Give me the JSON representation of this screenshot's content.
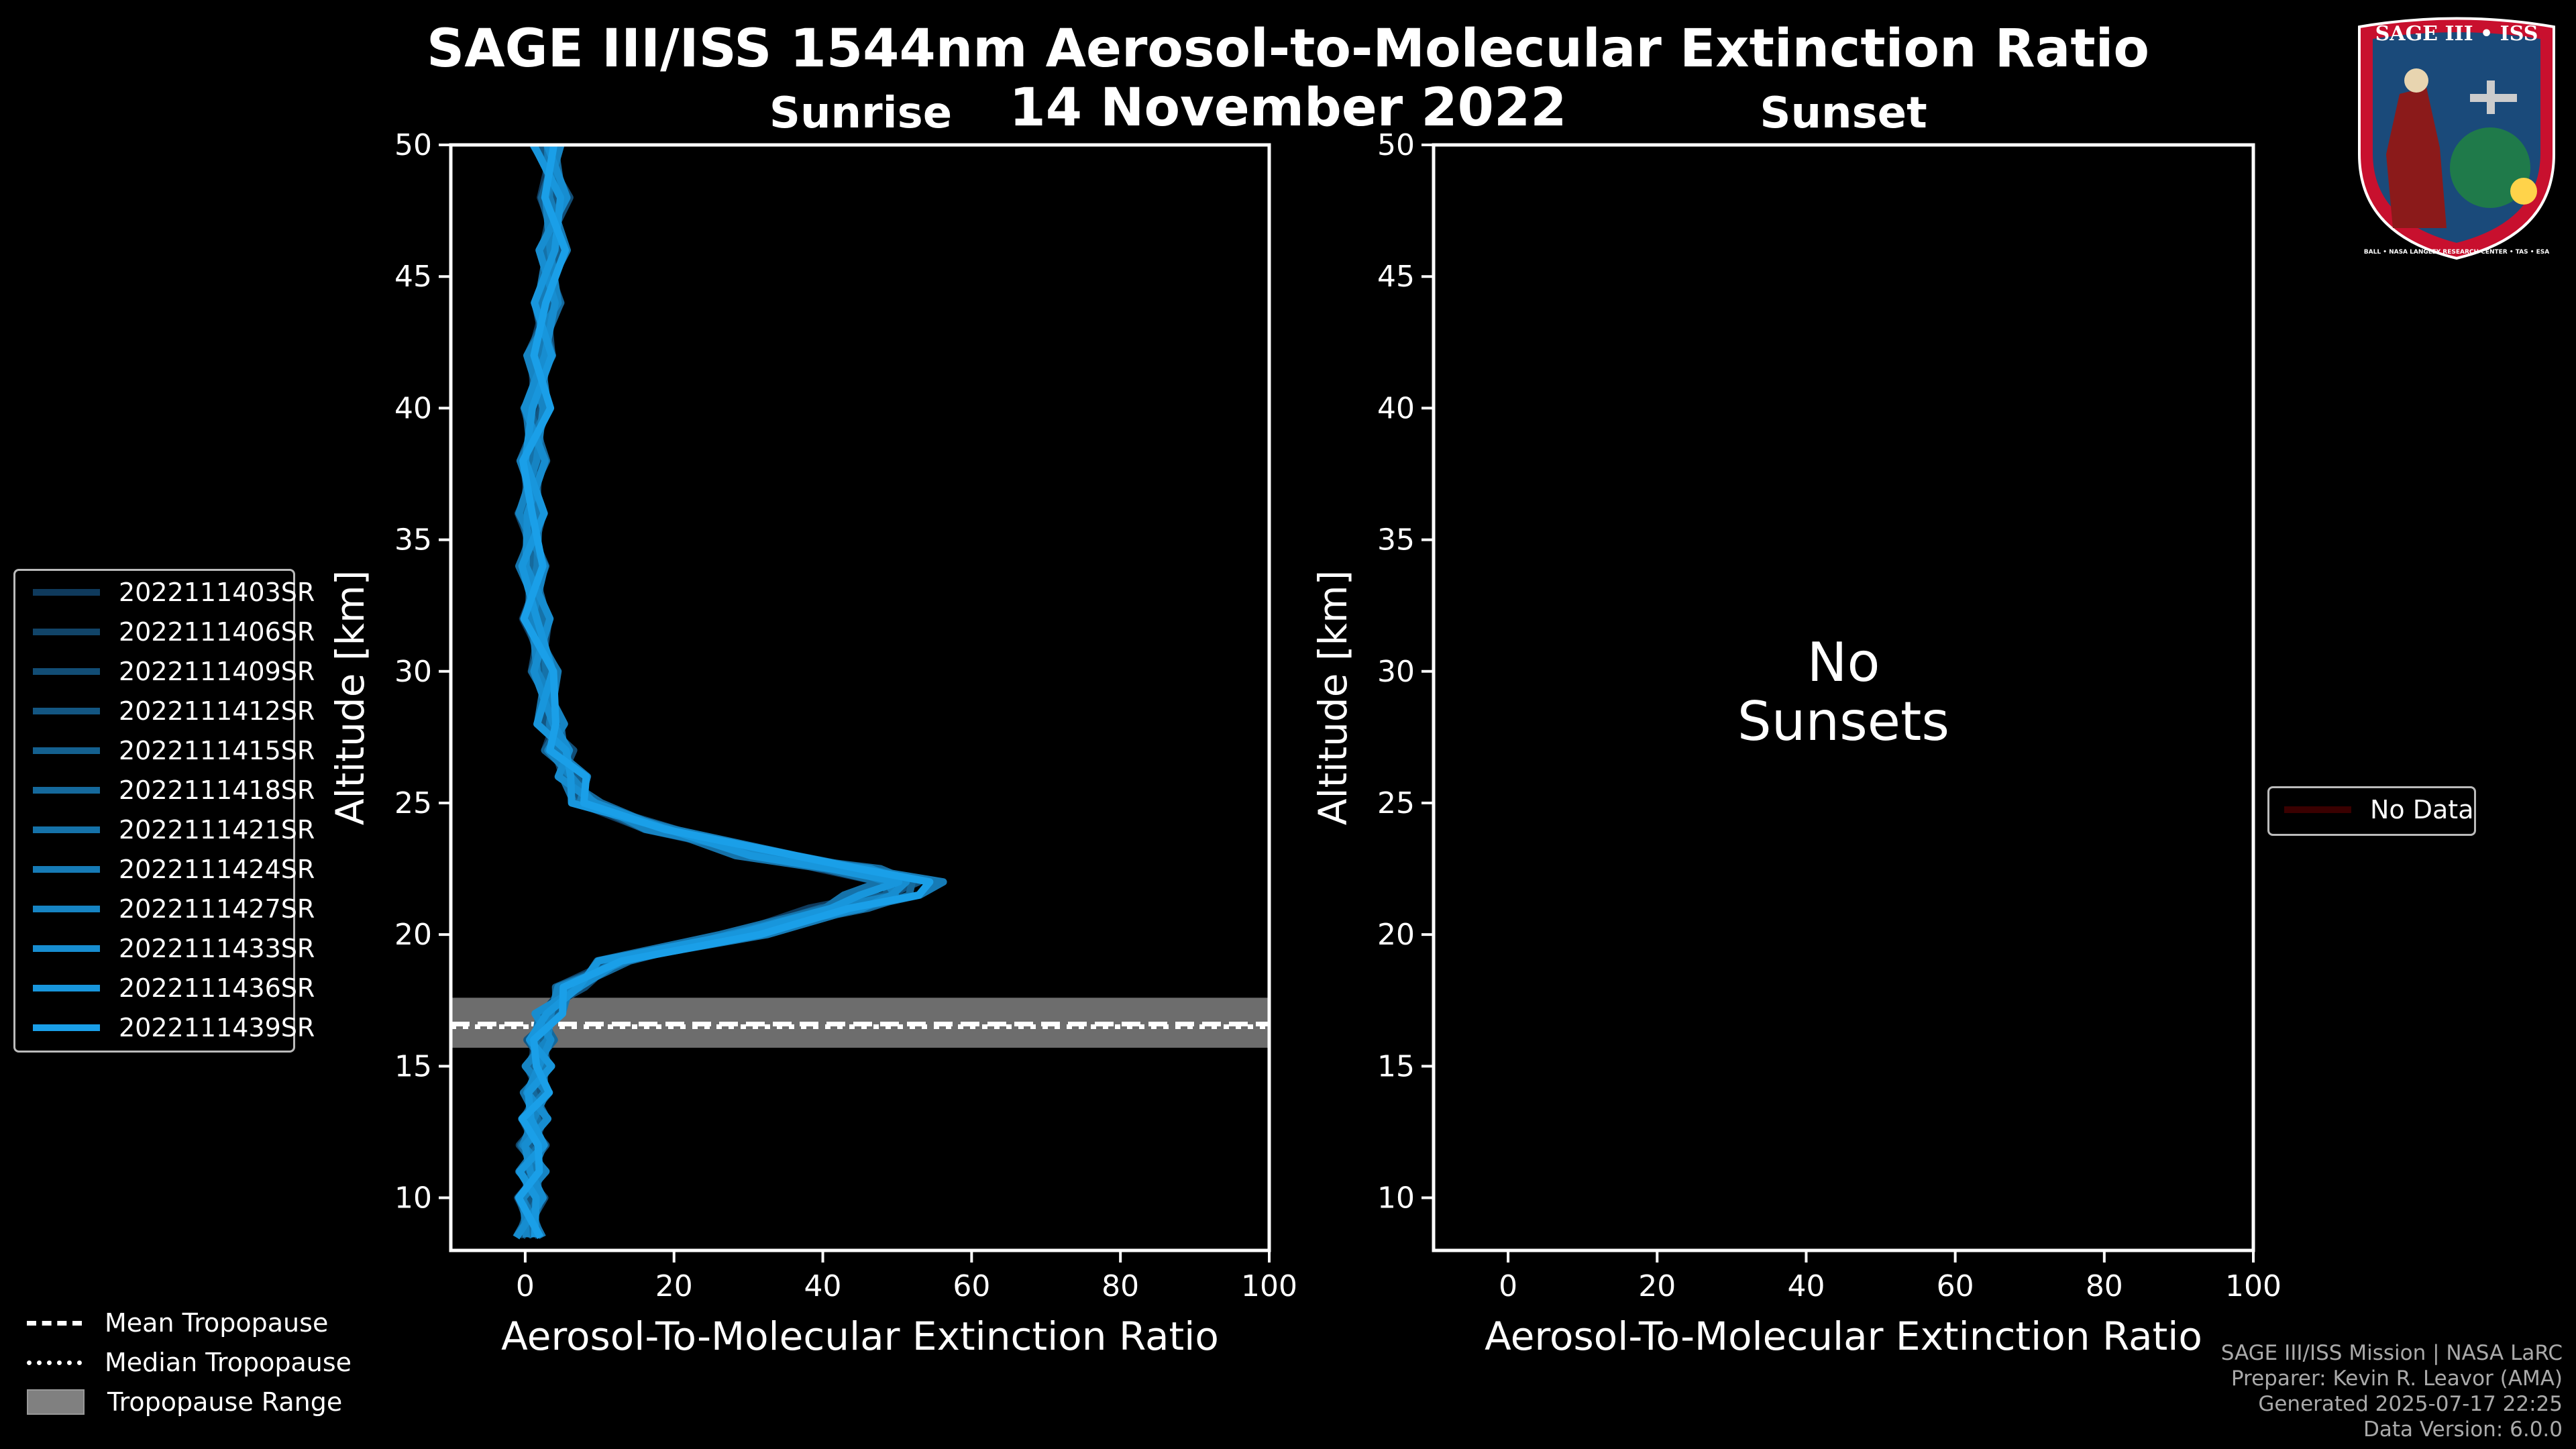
{
  "header": {
    "title": "SAGE III/ISS 1544nm Aerosol-to-Molecular Extinction Ratio",
    "date": "14 November 2022",
    "sunrise_label": "Sunrise",
    "sunset_label": "Sunset"
  },
  "chart_data": [
    {
      "type": "line",
      "panel": "Sunrise",
      "title": "Sunrise",
      "xlabel": "Aerosol-To-Molecular Extinction Ratio",
      "ylabel": "Altitude [km]",
      "xlim": [
        -10,
        100
      ],
      "ylim": [
        8,
        50
      ],
      "xticks": [
        0,
        20,
        40,
        60,
        80,
        100
      ],
      "yticks": [
        10,
        15,
        20,
        25,
        30,
        35,
        40,
        45,
        50
      ],
      "tropopause": {
        "mean_km": 16.6,
        "median_km": 16.5,
        "range_km": [
          15.7,
          17.6
        ]
      },
      "profile_shape": {
        "altitude_km": [
          8.5,
          10,
          11,
          12,
          13,
          14,
          15,
          16,
          17,
          18,
          19,
          20,
          21,
          21.5,
          22,
          22.5,
          23,
          24,
          25,
          26,
          27,
          28,
          30,
          32,
          34,
          36,
          38,
          40,
          42,
          44,
          46,
          48,
          50
        ],
        "ratio": [
          0.5,
          0.8,
          1.0,
          1.0,
          1.2,
          1.5,
          1.8,
          2.0,
          3.0,
          6.0,
          12.0,
          28.0,
          42.0,
          48.0,
          50.0,
          43.0,
          32.0,
          18.0,
          8.0,
          6.0,
          4.5,
          3.5,
          2.5,
          1.5,
          1.0,
          0.8,
          1.0,
          1.5,
          2.0,
          3.0,
          3.5,
          4.0,
          3.0
        ]
      },
      "series": [
        {
          "name": "2022111403SR",
          "color": "#0f3a5c",
          "x_scale": 0.95
        },
        {
          "name": "2022111406SR",
          "color": "#114468",
          "x_scale": 1.0
        },
        {
          "name": "2022111409SR",
          "color": "#124d75",
          "x_scale": 1.05
        },
        {
          "name": "2022111412SR",
          "color": "#135682",
          "x_scale": 1.02
        },
        {
          "name": "2022111415SR",
          "color": "#14608f",
          "x_scale": 0.98
        },
        {
          "name": "2022111418SR",
          "color": "#15699c",
          "x_scale": 1.07
        },
        {
          "name": "2022111421SR",
          "color": "#1572a9",
          "x_scale": 0.93
        },
        {
          "name": "2022111424SR",
          "color": "#167bb6",
          "x_scale": 1.1
        },
        {
          "name": "2022111427SR",
          "color": "#1684c3",
          "x_scale": 1.0
        },
        {
          "name": "2022111433SR",
          "color": "#178dd0",
          "x_scale": 1.04
        },
        {
          "name": "2022111436SR",
          "color": "#1896dc",
          "x_scale": 0.97
        },
        {
          "name": "2022111439SR",
          "color": "#1a9fe8",
          "x_scale": 1.08
        }
      ]
    },
    {
      "type": "line",
      "panel": "Sunset",
      "title": "Sunset",
      "xlabel": "Aerosol-To-Molecular Extinction Ratio",
      "ylabel": "Altitude [km]",
      "xlim": [
        -10,
        100
      ],
      "ylim": [
        8,
        50
      ],
      "xticks": [
        0,
        20,
        40,
        60,
        80,
        100
      ],
      "yticks": [
        10,
        15,
        20,
        25,
        30,
        35,
        40,
        45,
        50
      ],
      "annotation": "No\nSunsets",
      "series": [],
      "legend": [
        {
          "name": "No Data",
          "color": "#3a0000"
        }
      ]
    }
  ],
  "global_legend": [
    {
      "label": "Mean Tropopause",
      "style": "dashed",
      "color": "#ffffff"
    },
    {
      "label": "Median Tropopause",
      "style": "dotted",
      "color": "#ffffff"
    },
    {
      "label": "Tropopause Range",
      "style": "patch",
      "color": "#808080"
    }
  ],
  "badge": {
    "top_text": "SAGE III • ISS",
    "ring_text": "BALL • NASA LANGLEY RESEARCH CENTER • TAS • ESA",
    "colors": {
      "ring": "#c8102e",
      "field": "#1a4a7a"
    }
  },
  "footer": [
    "SAGE III/ISS Mission | NASA LaRC",
    "Preparer: Kevin R. Leavor (AMA)",
    "Generated 2025-07-17 22:25",
    "Data Version: 6.0.0"
  ]
}
